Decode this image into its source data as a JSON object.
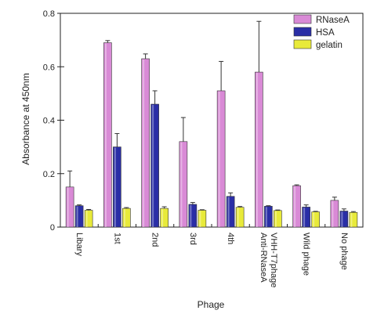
{
  "chart_data": {
    "type": "bar",
    "title": "",
    "xlabel": "Phage",
    "ylabel": "Absorbance at 450nm",
    "ylim": [
      0,
      0.8
    ],
    "yticks": [
      0,
      0.2,
      0.4,
      0.6,
      0.8
    ],
    "ytick_labels": [
      "0",
      "0.2",
      "0.4",
      "0.6",
      "0.8"
    ],
    "categories": [
      "Libary",
      "1st",
      "2nd",
      "3rd",
      "4th",
      "Anti-RNaseA VHH-T7phage",
      "Wild phage",
      "No phage"
    ],
    "category_label_lines": [
      [
        "Libary"
      ],
      [
        "1st"
      ],
      [
        "2nd"
      ],
      [
        "3rd"
      ],
      [
        "4th"
      ],
      [
        "Anti-RNaseA",
        "VHH-T7phage"
      ],
      [
        "Wild phage"
      ],
      [
        "No phage"
      ]
    ],
    "series": [
      {
        "name": "RNaseA",
        "color": "#d98ad6",
        "values": [
          0.15,
          0.69,
          0.63,
          0.32,
          0.51,
          0.58,
          0.155,
          0.1
        ],
        "errors": [
          0.06,
          0.008,
          0.018,
          0.09,
          0.11,
          0.19,
          0.003,
          0.012
        ]
      },
      {
        "name": "HSA",
        "color": "#2a2ea6",
        "values": [
          0.08,
          0.3,
          0.46,
          0.085,
          0.115,
          0.078,
          0.075,
          0.06
        ],
        "errors": [
          0.003,
          0.05,
          0.05,
          0.007,
          0.013,
          0.002,
          0.008,
          0.008
        ]
      },
      {
        "name": "gelatin",
        "color": "#e8ea3a",
        "values": [
          0.063,
          0.07,
          0.07,
          0.063,
          0.074,
          0.062,
          0.057,
          0.055
        ],
        "errors": [
          0.003,
          0.003,
          0.006,
          0.002,
          0.003,
          0.002,
          0.002,
          0.003
        ]
      }
    ],
    "legend_position": "top-right",
    "grid": false
  }
}
